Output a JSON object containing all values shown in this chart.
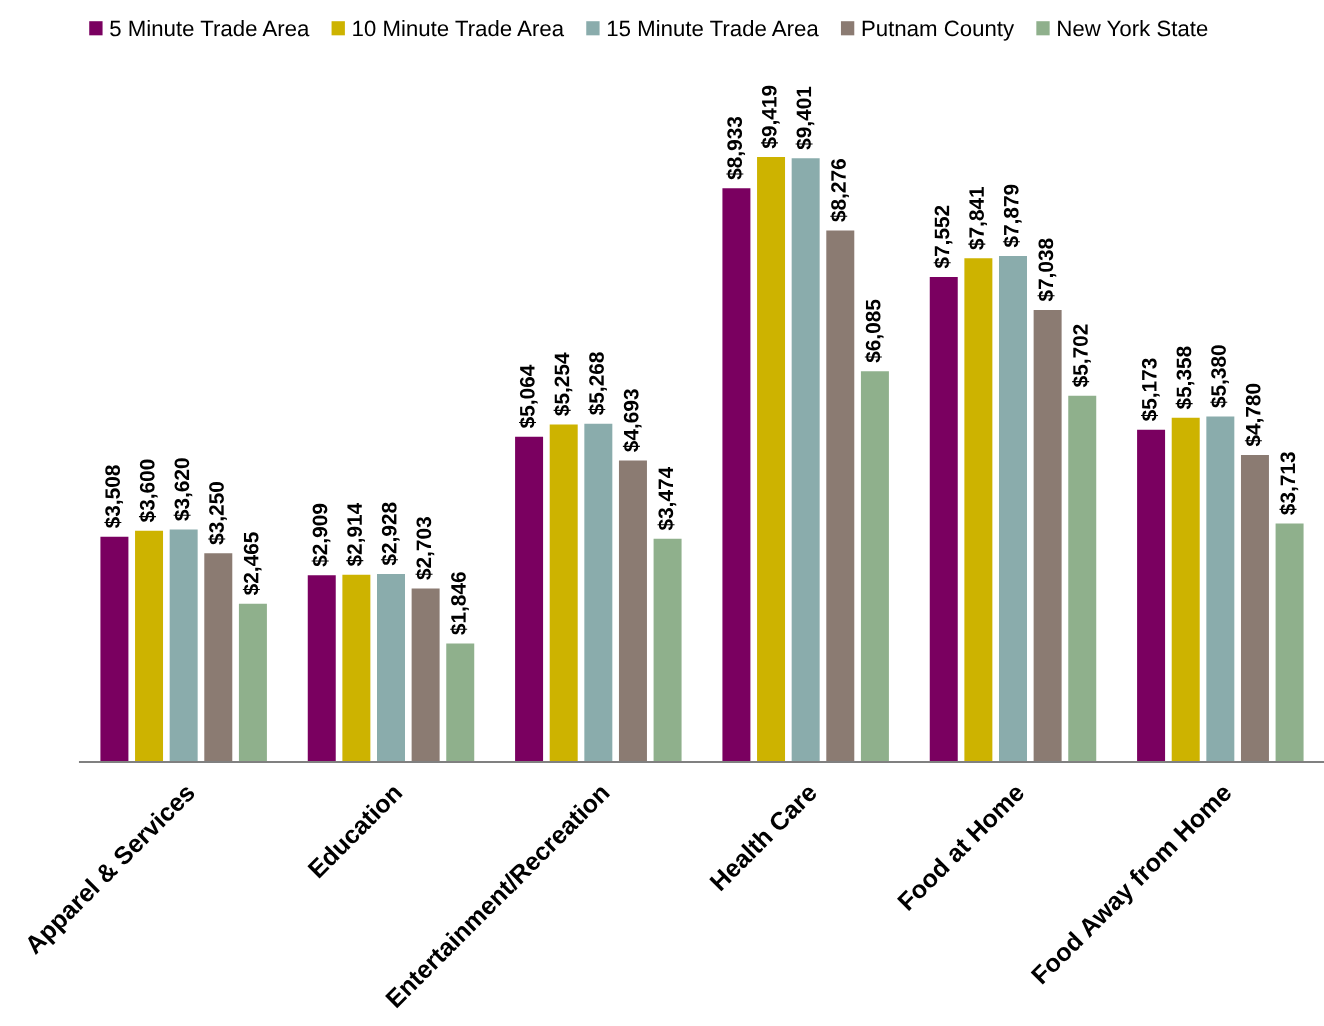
{
  "chart_data": {
    "type": "bar",
    "categories": [
      "Apparel & Services",
      "Education",
      "Entertainment/Recreation",
      "Health Care",
      "Food at Home",
      "Food Away from Home"
    ],
    "series": [
      {
        "name": "5 Minute Trade Area",
        "color": "#7a0060",
        "values": [
          3508,
          2909,
          5064,
          8933,
          7552,
          5173
        ],
        "value_labels": [
          "$3,508",
          "$2,909",
          "$5,064",
          "$8,933",
          "$7,552",
          "$5,173"
        ]
      },
      {
        "name": "10 Minute Trade Area",
        "color": "#cdb300",
        "values": [
          3600,
          2914,
          5254,
          9419,
          7841,
          5358
        ],
        "value_labels": [
          "$3,600",
          "$2,914",
          "$5,254",
          "$9,419",
          "$7,841",
          "$5,358"
        ]
      },
      {
        "name": "15 Minute Trade Area",
        "color": "#8aacac",
        "values": [
          3620,
          2928,
          5268,
          9401,
          7879,
          5380
        ],
        "value_labels": [
          "$3,620",
          "$2,928",
          "$5,268",
          "$9,401",
          "$7,879",
          "$5,380"
        ]
      },
      {
        "name": "Putnam County",
        "color": "#8b7b72",
        "values": [
          3250,
          2703,
          4693,
          8276,
          7038,
          4780
        ],
        "value_labels": [
          "$3,250",
          "$2,703",
          "$4,693",
          "$8,276",
          "$7,038",
          "$4,780"
        ]
      },
      {
        "name": "New York State",
        "color": "#8fb08c",
        "values": [
          2465,
          1846,
          3474,
          6085,
          5702,
          3713
        ],
        "value_labels": [
          "$2,465",
          "$1,846",
          "$3,474",
          "$6,085",
          "$5,702",
          "$3,713"
        ]
      }
    ],
    "legend": "top",
    "grid": false,
    "tick_labels": "x"
  }
}
